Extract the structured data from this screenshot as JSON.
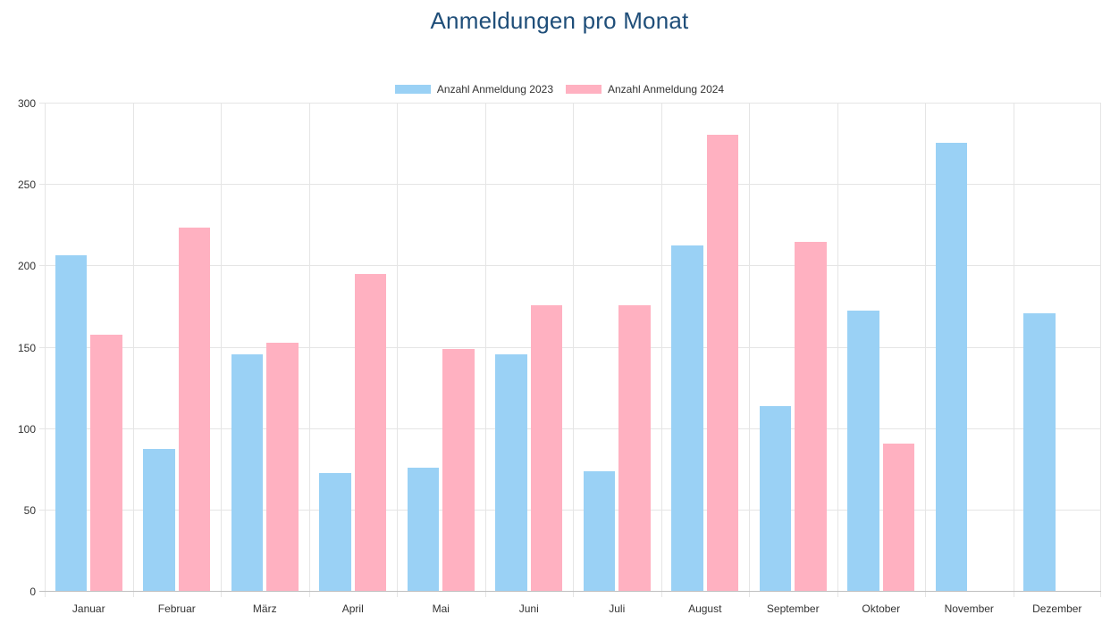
{
  "chart_data": {
    "type": "bar",
    "title": "Anmeldungen pro Monat",
    "categories": [
      "Januar",
      "Februar",
      "März",
      "April",
      "Mai",
      "Juni",
      "Juli",
      "August",
      "September",
      "Oktober",
      "November",
      "Dezember"
    ],
    "series": [
      {
        "name": "Anzahl Anmeldung 2023",
        "color": "#9AD1F5",
        "values": [
          207,
          88,
          146,
          73,
          76,
          146,
          74,
          213,
          114,
          173,
          276,
          171
        ]
      },
      {
        "name": "Anzahl Anmeldung 2024",
        "color": "#FFB1C1",
        "values": [
          158,
          224,
          153,
          195,
          149,
          176,
          176,
          281,
          215,
          91,
          0,
          0
        ]
      }
    ],
    "xlabel": "",
    "ylabel": "",
    "ylim": [
      0,
      300
    ],
    "yticks": [
      0,
      50,
      100,
      150,
      200,
      250,
      300
    ],
    "grid": true,
    "legend_position": "top",
    "colors": {
      "title": "#1F4E79",
      "tick_text": "#333333",
      "grid": "#E5E5E5",
      "axis_line": "#BFBFBF",
      "background": "#FFFFFF"
    }
  }
}
